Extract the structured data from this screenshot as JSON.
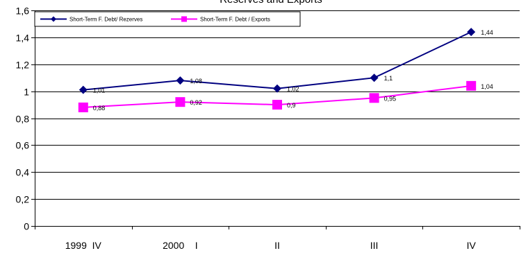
{
  "chart_data": {
    "type": "line",
    "title": "Reserves and Exports",
    "categories": [
      "1999  IV",
      "2000    I",
      "II",
      "III",
      "IV"
    ],
    "ylim": [
      0,
      1.6
    ],
    "yticks": [
      "0",
      "0,2",
      "0,4",
      "0,6",
      "0,8",
      "1",
      "1,2",
      "1,4",
      "1,6"
    ],
    "grid": true,
    "legend_position": "top-left",
    "series": [
      {
        "name": "Short-Term F. Debt/ Rezerves",
        "values": [
          1.01,
          1.08,
          1.02,
          1.1,
          1.44
        ],
        "labels": [
          "1,01",
          "1,08",
          "1,02",
          "1,1",
          "1,44"
        ],
        "color": "#000080",
        "marker": "diamond"
      },
      {
        "name": "Short-Term F. Debt / Exports",
        "values": [
          0.88,
          0.92,
          0.9,
          0.95,
          1.04
        ],
        "labels": [
          "0,88",
          "0,92",
          "0,9",
          "0,95",
          "1,04"
        ],
        "color": "#ff00ff",
        "marker": "square"
      }
    ]
  }
}
